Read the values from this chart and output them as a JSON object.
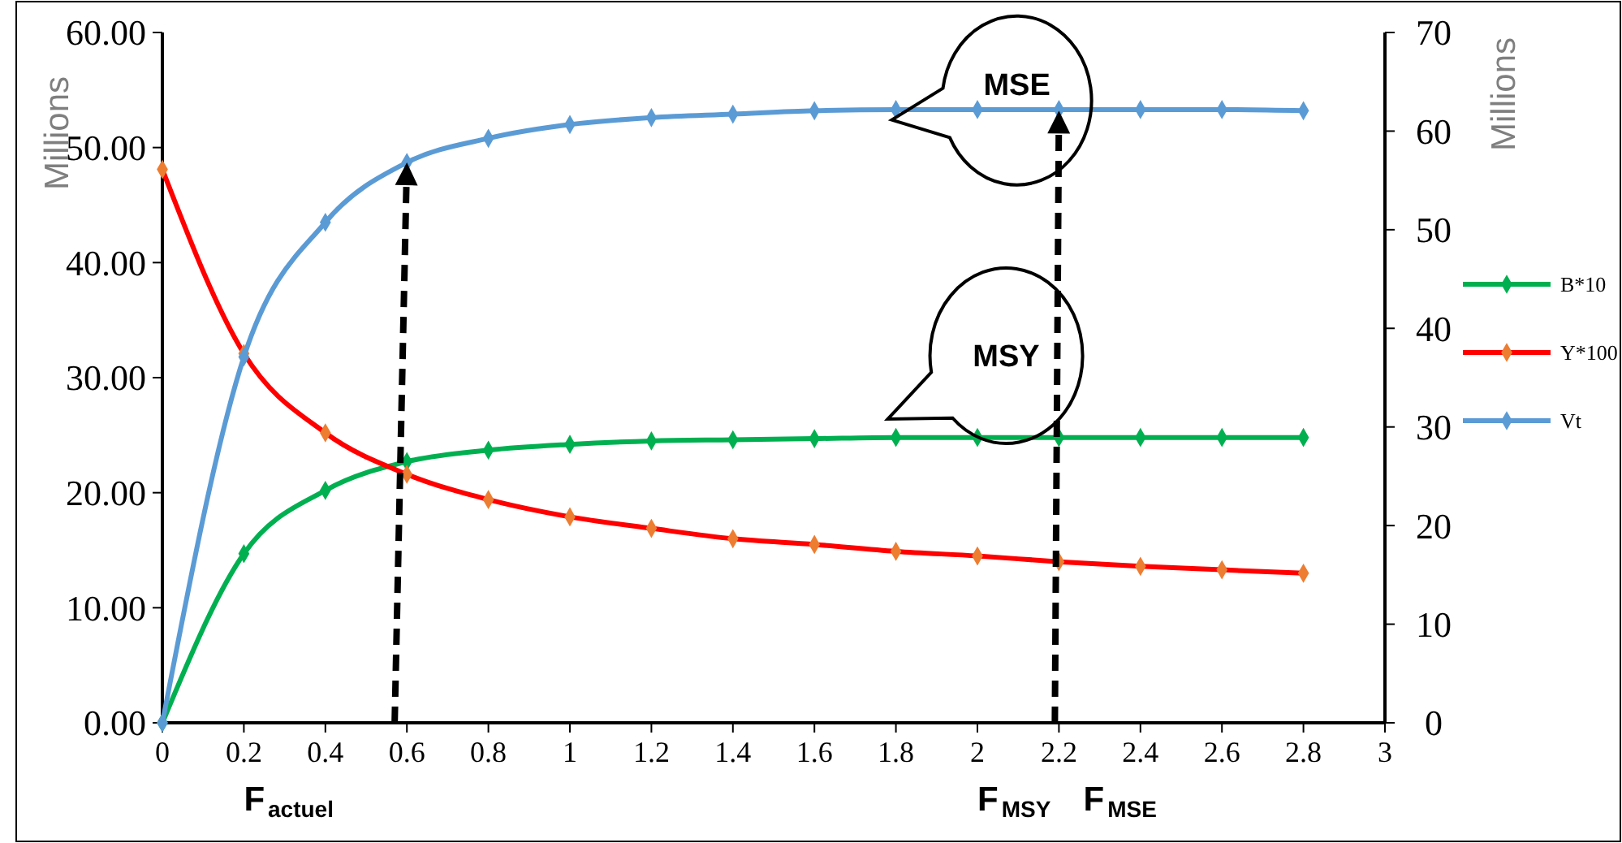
{
  "chart_data": {
    "type": "line",
    "x": [
      0,
      0.2,
      0.4,
      0.6,
      0.8,
      1.0,
      1.2,
      1.4,
      1.6,
      1.8,
      2.0,
      2.2,
      2.4,
      2.6,
      2.8
    ],
    "series": [
      {
        "name": "B*10",
        "color": "#00b050",
        "values": [
          0,
          14.7,
          20.2,
          22.7,
          23.7,
          24.2,
          24.5,
          24.6,
          24.7,
          24.8,
          24.8,
          24.8,
          24.8,
          24.8,
          24.8
        ]
      },
      {
        "name": "Y*100",
        "color": "#ff0000",
        "values": [
          48.1,
          32.1,
          25.2,
          21.6,
          19.4,
          17.9,
          16.9,
          16.0,
          15.5,
          14.9,
          14.5,
          14.0,
          13.6,
          13.3,
          13.0
        ]
      },
      {
        "name": "Vt",
        "color": "#5b9bd5",
        "values": [
          0,
          31.8,
          43.5,
          48.7,
          50.8,
          52.0,
          52.6,
          52.9,
          53.2,
          53.3,
          53.3,
          53.3,
          53.3,
          53.3,
          53.2
        ]
      }
    ],
    "xlim": [
      0,
      3
    ],
    "xticks": [
      0,
      0.2,
      0.4,
      0.6,
      0.8,
      1,
      1.2,
      1.4,
      1.6,
      1.8,
      2,
      2.2,
      2.4,
      2.6,
      2.8,
      3
    ],
    "ylim": [
      0,
      60
    ],
    "yticks": [
      {
        "value": 0,
        "label": "0.00"
      },
      {
        "value": 10,
        "label": "10.00"
      },
      {
        "value": 20,
        "label": "20.00"
      },
      {
        "value": 30,
        "label": "30.00"
      },
      {
        "value": 40,
        "label": "40.00"
      },
      {
        "value": 50,
        "label": "50.00"
      },
      {
        "value": 60,
        "label": "60.00"
      }
    ],
    "y2lim": [
      0,
      70
    ],
    "y2ticks": [
      0,
      10,
      20,
      30,
      40,
      50,
      60,
      70
    ],
    "ylabel": "Millions",
    "y2label": "Millions",
    "annotations": [
      "MSE",
      "MSY",
      "F$_{actuel}$",
      "F$_{MSY}$",
      "F$_{MSE}$"
    ],
    "legend": "right",
    "marker": "diamond",
    "line_style": "solid",
    "grid": false
  }
}
